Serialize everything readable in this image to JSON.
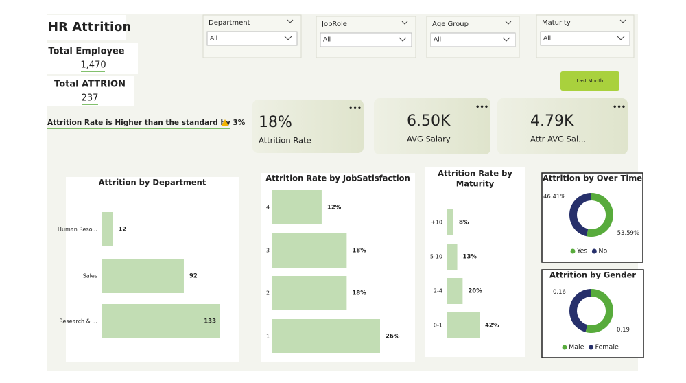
{
  "header": {
    "title": "HR Attrition",
    "total_employee": {
      "label": "Total Employee",
      "value": "1,470"
    },
    "total_attrition": {
      "label": "Total ATTRION",
      "value": "237"
    },
    "alert": "Attrition Rate is Higher than the standard by 3%"
  },
  "slicers": [
    {
      "label": "Department",
      "value": "All"
    },
    {
      "label": "JobRole",
      "value": "All"
    },
    {
      "label": "Age Group",
      "value": "All"
    },
    {
      "label": "Maturity",
      "value": "All"
    }
  ],
  "button": "Last Month",
  "kpis": [
    {
      "value": "18%",
      "label": "Attrition Rate"
    },
    {
      "value": "6.50K",
      "label": "AVG Salary"
    },
    {
      "value": "4.79K",
      "label": "Attr AVG Sal..."
    }
  ],
  "chart_data": [
    {
      "type": "bar",
      "orientation": "horizontal",
      "title": "Attrition by Department",
      "categories": [
        "Human Reso...",
        "Sales",
        "Research & ..."
      ],
      "values": [
        12,
        92,
        133
      ],
      "color": "#c2ddb4",
      "xlim": [
        0,
        133
      ]
    },
    {
      "type": "bar",
      "orientation": "horizontal",
      "title": "Attrition Rate by JobSatisfaction",
      "categories": [
        "4",
        "3",
        "2",
        "1"
      ],
      "values": [
        12,
        18,
        18,
        26
      ],
      "value_labels": [
        "12%",
        "18%",
        "18%",
        "26%"
      ],
      "color": "#c2ddb4",
      "xlim": [
        0,
        26
      ]
    },
    {
      "type": "bar",
      "orientation": "horizontal",
      "title": "Attrition Rate by Maturity",
      "categories": [
        "+10",
        "5-10",
        "2-4",
        "0-1"
      ],
      "values": [
        8,
        13,
        20,
        42
      ],
      "value_labels": [
        "8%",
        "13%",
        "20%",
        "42%"
      ],
      "color": "#c2ddb4",
      "xlim": [
        0,
        42
      ]
    },
    {
      "type": "donut",
      "title": "Attrition by Over Time",
      "categories": [
        "Yes",
        "No"
      ],
      "values": [
        53.59,
        46.41
      ],
      "value_labels": [
        "53.59%",
        "46.41%"
      ],
      "colors": [
        "#58ab3c",
        "#27306b"
      ]
    },
    {
      "type": "donut",
      "title": "Attrition by Gender",
      "categories": [
        "Male",
        "Female"
      ],
      "values": [
        0.19,
        0.16
      ],
      "colors": [
        "#58ab3c",
        "#27306b"
      ]
    }
  ]
}
